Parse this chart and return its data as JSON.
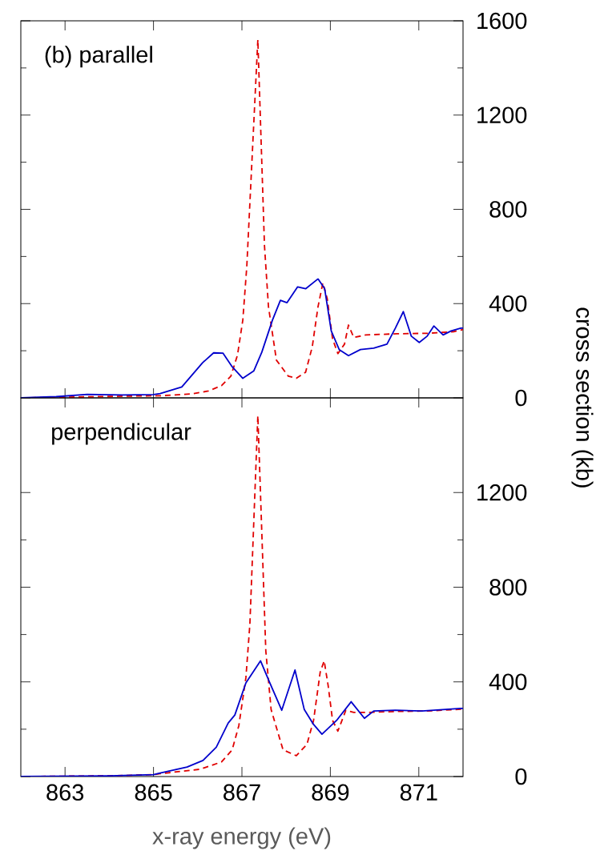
{
  "chart_data": [
    {
      "type": "line",
      "annotations": [
        "(b) parallel"
      ],
      "ylabel": "cross section (kb)",
      "xlim": [
        862,
        872
      ],
      "xticks": [
        863,
        865,
        867,
        869,
        871
      ],
      "ylim": [
        0,
        1600
      ],
      "yticks": [
        0,
        400,
        800,
        1200,
        1600
      ],
      "tick_labels": "y",
      "series": [
        {
          "color": "#e00000",
          "line_style": "dashed",
          "x": [
            862,
            863,
            864,
            865,
            865.15,
            865.88,
            866.24,
            866.54,
            866.75,
            866.9,
            867.02,
            867.11,
            867.36,
            867.51,
            867.6,
            867.78,
            868.05,
            868.23,
            868.44,
            868.59,
            868.72,
            868.83,
            868.93,
            869.05,
            869.17,
            869.32,
            869.41,
            869.53,
            869.8,
            870.5,
            871.2,
            871.79,
            872
          ],
          "values": [
            0,
            3,
            6,
            9,
            9,
            17,
            29,
            52,
            92,
            182,
            330,
            557,
            1520,
            646,
            387,
            160,
            92,
            83,
            109,
            216,
            386,
            488,
            420,
            250,
            188,
            228,
            309,
            256,
            267,
            272,
            274,
            281,
            290
          ]
        },
        {
          "color": "#0000cc",
          "line_style": "solid",
          "x": [
            862,
            862.8,
            863.5,
            864.3,
            865,
            865.15,
            865.64,
            866.11,
            866.36,
            866.57,
            866.78,
            867.02,
            867.27,
            867.45,
            867.69,
            867.87,
            868.02,
            868.26,
            868.44,
            868.72,
            868.87,
            869.02,
            869.2,
            869.41,
            869.68,
            869.98,
            870.28,
            870.47,
            870.65,
            870.83,
            871.01,
            871.19,
            871.34,
            871.55,
            871.73,
            871.95,
            872
          ],
          "values": [
            0,
            5,
            15,
            12,
            14,
            18,
            46,
            149,
            191,
            190,
            132,
            83,
            115,
            194,
            330,
            414,
            404,
            471,
            463,
            505,
            464,
            284,
            205,
            179,
            205,
            211,
            228,
            296,
            366,
            262,
            235,
            262,
            305,
            267,
            284,
            296,
            296
          ]
        }
      ]
    },
    {
      "type": "line",
      "annotations": [
        "perpendicular"
      ],
      "xlabel": "x-ray energy (eV)",
      "xlim": [
        862,
        872
      ],
      "xticks": [
        863,
        865,
        867,
        869,
        871
      ],
      "ylim": [
        0,
        1600
      ],
      "yticks": [
        0,
        400,
        800,
        1200
      ],
      "series": [
        {
          "color": "#e00000",
          "line_style": "dashed",
          "x": [
            862,
            864,
            865,
            865.15,
            866.06,
            866.54,
            866.78,
            866.93,
            867.09,
            867.18,
            867.36,
            867.54,
            867.66,
            867.93,
            868.23,
            868.47,
            868.62,
            868.77,
            868.86,
            868.95,
            869.05,
            869.17,
            869.35,
            869.53,
            869.86,
            870.5,
            871.2,
            872
          ],
          "values": [
            0,
            3,
            8,
            12,
            31,
            62,
            113,
            215,
            418,
            644,
            1525,
            531,
            283,
            113,
            88,
            136,
            237,
            441,
            489,
            384,
            237,
            192,
            280,
            271,
            271,
            275,
            277,
            285
          ]
        },
        {
          "color": "#0000cc",
          "line_style": "solid",
          "x": [
            862,
            864,
            865,
            865.15,
            865.76,
            866.12,
            866.42,
            866.69,
            866.84,
            867.09,
            867.42,
            867.63,
            867.9,
            868.2,
            868.41,
            868.62,
            868.81,
            869.14,
            869.47,
            869.77,
            869.98,
            870.47,
            871.07,
            871.95,
            872
          ],
          "values": [
            0,
            3,
            8,
            15,
            40,
            68,
            124,
            226,
            260,
            396,
            489,
            396,
            280,
            450,
            283,
            220,
            179,
            237,
            316,
            246,
            277,
            280,
            277,
            288,
            288
          ]
        }
      ]
    }
  ]
}
